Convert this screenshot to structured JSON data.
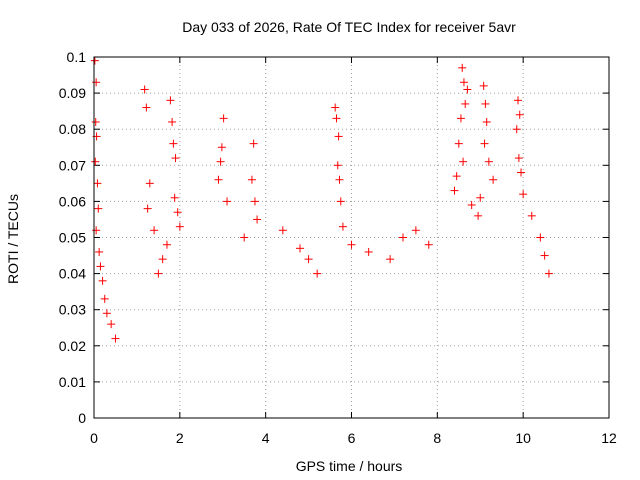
{
  "chart_data": {
    "type": "scatter",
    "title": "Day 033 of 2026, Rate Of TEC Index for receiver 5avr",
    "xlabel": "GPS time / hours",
    "ylabel": "ROTI / TECUs",
    "xlim": [
      0,
      12
    ],
    "ylim": [
      0,
      0.1
    ],
    "x_ticks": [
      "0",
      "2",
      "4",
      "6",
      "8",
      "10",
      "12"
    ],
    "y_ticks": [
      "0",
      "0.01",
      "0.02",
      "0.03",
      "0.04",
      "0.05",
      "0.06",
      "0.07",
      "0.08",
      "0.09",
      "0.1"
    ],
    "grid": true,
    "marker": "+",
    "point_color": "#ff0000",
    "data_range_x": [
      0,
      10.6
    ],
    "series": [
      {
        "points": [
          [
            0.02,
            0.099
          ],
          [
            0.05,
            0.093
          ],
          [
            0.04,
            0.082
          ],
          [
            0.06,
            0.078
          ],
          [
            0.03,
            0.071
          ],
          [
            0.08,
            0.065
          ],
          [
            0.1,
            0.058
          ],
          [
            0.05,
            0.052
          ],
          [
            0.12,
            0.046
          ],
          [
            0.15,
            0.042
          ],
          [
            0.2,
            0.038
          ],
          [
            0.25,
            0.033
          ],
          [
            0.3,
            0.029
          ],
          [
            0.4,
            0.026
          ],
          [
            0.5,
            0.022
          ],
          [
            1.18,
            0.091
          ],
          [
            1.22,
            0.086
          ],
          [
            1.3,
            0.065
          ],
          [
            1.25,
            0.058
          ],
          [
            1.4,
            0.052
          ],
          [
            1.78,
            0.088
          ],
          [
            1.82,
            0.082
          ],
          [
            1.85,
            0.076
          ],
          [
            1.9,
            0.072
          ],
          [
            1.88,
            0.061
          ],
          [
            1.95,
            0.057
          ],
          [
            2.0,
            0.053
          ],
          [
            1.7,
            0.048
          ],
          [
            1.6,
            0.044
          ],
          [
            1.5,
            0.04
          ],
          [
            3.02,
            0.083
          ],
          [
            2.98,
            0.075
          ],
          [
            2.95,
            0.071
          ],
          [
            2.9,
            0.066
          ],
          [
            3.1,
            0.06
          ],
          [
            3.72,
            0.076
          ],
          [
            3.68,
            0.066
          ],
          [
            3.75,
            0.06
          ],
          [
            3.8,
            0.055
          ],
          [
            3.5,
            0.05
          ],
          [
            4.4,
            0.052
          ],
          [
            4.8,
            0.047
          ],
          [
            5.0,
            0.044
          ],
          [
            5.2,
            0.04
          ],
          [
            5.62,
            0.086
          ],
          [
            5.65,
            0.083
          ],
          [
            5.7,
            0.078
          ],
          [
            5.68,
            0.07
          ],
          [
            5.72,
            0.066
          ],
          [
            5.75,
            0.06
          ],
          [
            5.8,
            0.053
          ],
          [
            6.0,
            0.048
          ],
          [
            6.4,
            0.046
          ],
          [
            6.9,
            0.044
          ],
          [
            7.2,
            0.05
          ],
          [
            7.5,
            0.052
          ],
          [
            7.8,
            0.048
          ],
          [
            8.58,
            0.097
          ],
          [
            8.62,
            0.093
          ],
          [
            8.7,
            0.091
          ],
          [
            8.65,
            0.087
          ],
          [
            8.55,
            0.083
          ],
          [
            8.5,
            0.076
          ],
          [
            8.6,
            0.071
          ],
          [
            8.45,
            0.067
          ],
          [
            8.4,
            0.063
          ],
          [
            8.8,
            0.059
          ],
          [
            9.08,
            0.092
          ],
          [
            9.12,
            0.087
          ],
          [
            9.15,
            0.082
          ],
          [
            9.1,
            0.076
          ],
          [
            9.2,
            0.071
          ],
          [
            9.3,
            0.066
          ],
          [
            9.0,
            0.061
          ],
          [
            8.95,
            0.056
          ],
          [
            9.88,
            0.088
          ],
          [
            9.92,
            0.084
          ],
          [
            9.85,
            0.08
          ],
          [
            9.9,
            0.072
          ],
          [
            9.95,
            0.068
          ],
          [
            10.0,
            0.062
          ],
          [
            10.2,
            0.056
          ],
          [
            10.4,
            0.05
          ],
          [
            10.5,
            0.045
          ],
          [
            10.6,
            0.04
          ]
        ]
      }
    ]
  }
}
